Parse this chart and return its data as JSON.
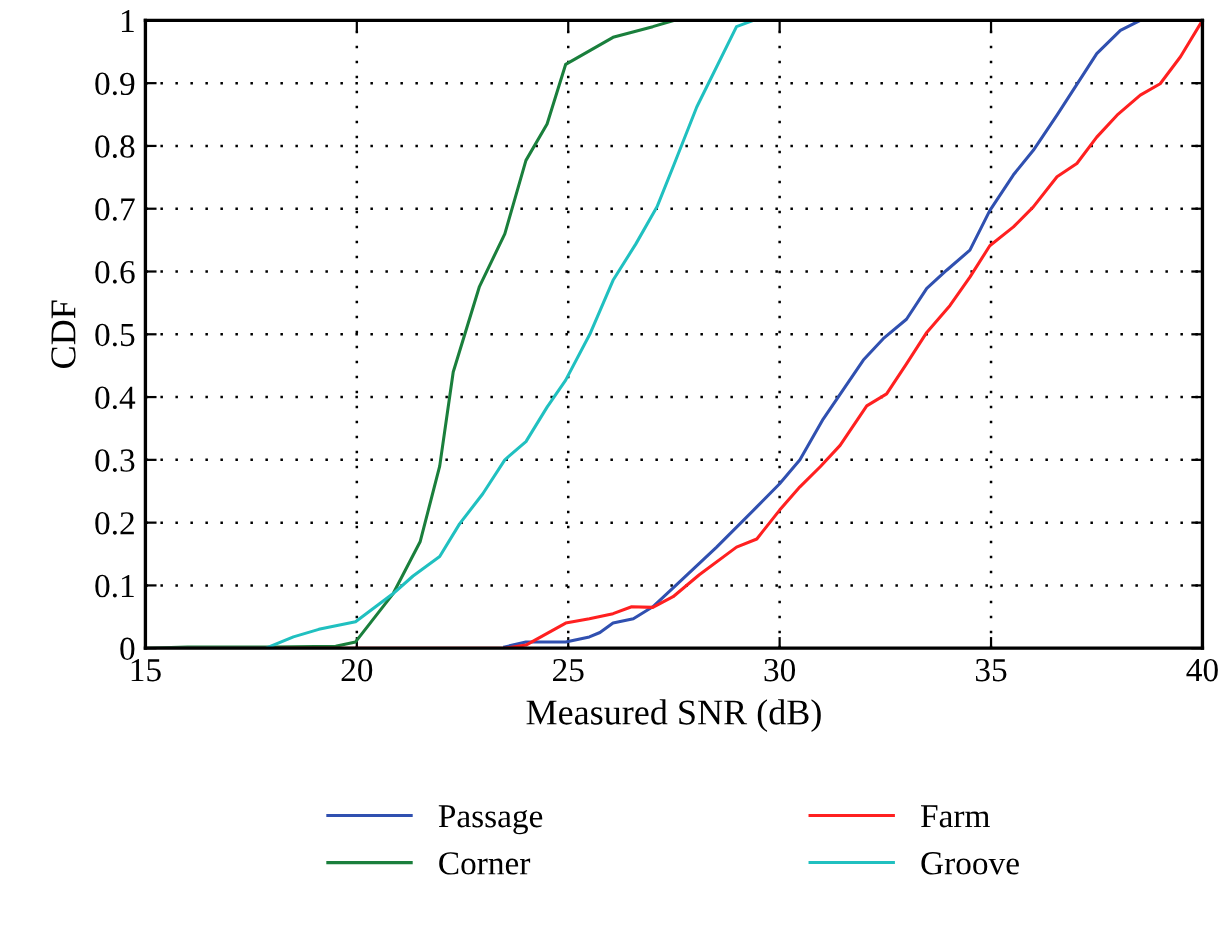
{
  "chart_data": {
    "type": "line",
    "xlabel": "Measured SNR (dB)",
    "ylabel": "CDF",
    "xlim": [
      15,
      40
    ],
    "xticks": [
      15,
      20,
      25,
      30,
      35,
      40
    ],
    "ylim": [
      0,
      1
    ],
    "yticks": [
      0,
      0.1,
      0.2,
      0.3,
      0.4,
      0.5,
      0.6,
      0.7,
      0.8,
      0.9,
      1
    ],
    "grid": true,
    "legend": "bottom",
    "line_style": "solid",
    "marker": "none",
    "series": [
      {
        "name": "Passage",
        "color": "#3050b0",
        "x": [
          23.5,
          24.0,
          24.94,
          25.5,
          25.75,
          26.06,
          26.54,
          27.0,
          27.64,
          28.51,
          29.46,
          30.0,
          30.48,
          31.03,
          31.98,
          32.45,
          33.0,
          33.48,
          33.95,
          34.5,
          34.97,
          35.53,
          36.0,
          36.56,
          37.5,
          38.06,
          38.53,
          40
        ],
        "values": [
          0.002,
          0.01,
          0.01,
          0.018,
          0.025,
          0.04,
          0.047,
          0.066,
          0.106,
          0.161,
          0.225,
          0.262,
          0.3,
          0.365,
          0.459,
          0.493,
          0.524,
          0.573,
          0.602,
          0.634,
          0.697,
          0.754,
          0.793,
          0.849,
          0.947,
          0.984,
          1,
          1
        ]
      },
      {
        "name": "Corner",
        "color": "#1a7f3c",
        "x": [
          15,
          16,
          18,
          19.5,
          19.97,
          20.86,
          21.5,
          21.96,
          22.28,
          22.9,
          23.5,
          24.0,
          24.5,
          24.94,
          26.06,
          27.0,
          27.5
        ],
        "values": [
          0,
          0.002,
          0.002,
          0.003,
          0.01,
          0.087,
          0.17,
          0.29,
          0.44,
          0.576,
          0.66,
          0.777,
          0.835,
          0.93,
          0.973,
          0.99,
          1
        ]
      },
      {
        "name": "Farm",
        "color": "#ff2020",
        "x": [
          15,
          20,
          23.5,
          24.0,
          24.94,
          25.5,
          26.06,
          26.5,
          27.0,
          27.48,
          28.1,
          28.98,
          29.46,
          30.0,
          30.48,
          30.96,
          31.43,
          32.06,
          32.53,
          33.0,
          33.48,
          34.03,
          34.5,
          34.97,
          35.53,
          36.0,
          36.56,
          37.03,
          37.5,
          37.98,
          38.53,
          39.0,
          39.48,
          40
        ],
        "values": [
          0,
          0,
          0,
          0.005,
          0.04,
          0.047,
          0.055,
          0.066,
          0.065,
          0.082,
          0.117,
          0.161,
          0.174,
          0.22,
          0.257,
          0.289,
          0.323,
          0.386,
          0.405,
          0.453,
          0.503,
          0.546,
          0.591,
          0.641,
          0.671,
          0.703,
          0.751,
          0.772,
          0.814,
          0.849,
          0.881,
          0.899,
          0.942,
          1
        ]
      },
      {
        "name": "Groove",
        "color": "#20c0c0",
        "x": [
          15,
          17.85,
          18.5,
          19.1,
          19.97,
          20.86,
          21.33,
          21.96,
          22.43,
          22.98,
          23.5,
          24.0,
          24.5,
          24.94,
          25.51,
          26.06,
          26.6,
          27.1,
          27.5,
          28.04,
          28.98,
          29.38
        ],
        "values": [
          0,
          0,
          0.018,
          0.03,
          0.042,
          0.087,
          0.115,
          0.146,
          0.198,
          0.246,
          0.3,
          0.329,
          0.384,
          0.427,
          0.5,
          0.586,
          0.644,
          0.703,
          0.77,
          0.862,
          0.99,
          1
        ]
      }
    ]
  }
}
